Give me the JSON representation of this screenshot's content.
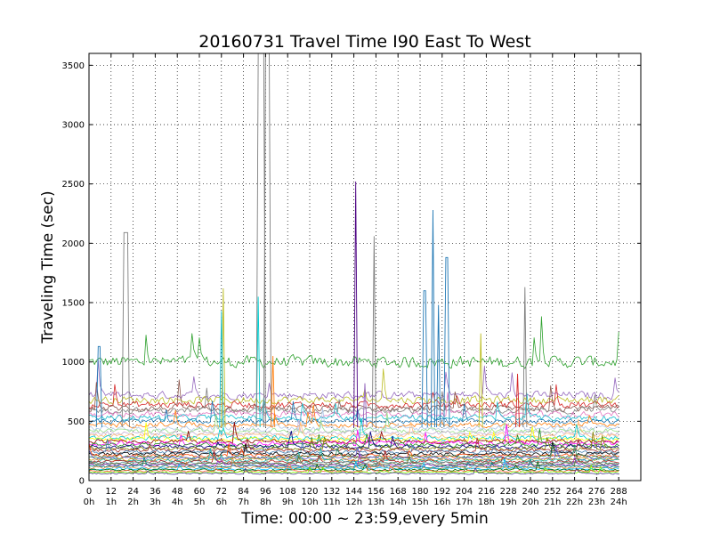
{
  "chart_data": {
    "type": "line",
    "title": "20160731 Travel Time I90 East To West",
    "xlabel": "Time: 00:00 ~ 23:59,every 5min",
    "ylabel": "Traveling Time (sec)",
    "xlim": [
      0,
      300
    ],
    "ylim": [
      0,
      3600
    ],
    "grid": true,
    "x_ticks": [
      {
        "value": 0,
        "label": "0",
        "hour": "0h"
      },
      {
        "value": 12,
        "label": "12",
        "hour": "1h"
      },
      {
        "value": 24,
        "label": "24",
        "hour": "2h"
      },
      {
        "value": 36,
        "label": "36",
        "hour": "3h"
      },
      {
        "value": 48,
        "label": "48",
        "hour": "4h"
      },
      {
        "value": 60,
        "label": "60",
        "hour": "5h"
      },
      {
        "value": 72,
        "label": "72",
        "hour": "6h"
      },
      {
        "value": 84,
        "label": "84",
        "hour": "7h"
      },
      {
        "value": 96,
        "label": "96",
        "hour": "8h"
      },
      {
        "value": 108,
        "label": "108",
        "hour": "9h"
      },
      {
        "value": 120,
        "label": "120",
        "hour": "10h"
      },
      {
        "value": 132,
        "label": "132",
        "hour": "11h"
      },
      {
        "value": 144,
        "label": "144",
        "hour": "12h"
      },
      {
        "value": 156,
        "label": "156",
        "hour": "13h"
      },
      {
        "value": 168,
        "label": "168",
        "hour": "14h"
      },
      {
        "value": 180,
        "label": "180",
        "hour": "15h"
      },
      {
        "value": 192,
        "label": "192",
        "hour": "16h"
      },
      {
        "value": 204,
        "label": "204",
        "hour": "17h"
      },
      {
        "value": 216,
        "label": "216",
        "hour": "18h"
      },
      {
        "value": 228,
        "label": "228",
        "hour": "19h"
      },
      {
        "value": 240,
        "label": "240",
        "hour": "20h"
      },
      {
        "value": 252,
        "label": "252",
        "hour": "21h"
      },
      {
        "value": 264,
        "label": "264",
        "hour": "22h"
      },
      {
        "value": 276,
        "label": "276",
        "hour": "23h"
      },
      {
        "value": 288,
        "label": "288",
        "hour": "24h"
      }
    ],
    "y_ticks": [
      0,
      500,
      1000,
      1500,
      2000,
      2500,
      3000,
      3500
    ],
    "series_count": 40,
    "series_points": 289,
    "series": [
      {
        "color": "#2ca02c",
        "base": 1000,
        "noise": 70
      },
      {
        "color": "#9467bd",
        "base": 720,
        "noise": 45
      },
      {
        "color": "#bcbd22",
        "base": 680,
        "noise": 45
      },
      {
        "color": "#d62728",
        "base": 640,
        "noise": 40
      },
      {
        "color": "#8c564b",
        "base": 610,
        "noise": 40
      },
      {
        "color": "#7f7f7f",
        "base": 590,
        "noise": 35
      },
      {
        "color": "#e377c2",
        "base": 560,
        "noise": 35
      },
      {
        "color": "#17becf",
        "base": 530,
        "noise": 35
      },
      {
        "color": "#1f77b4",
        "base": 500,
        "noise": 30
      },
      {
        "color": "#ff7f0e",
        "base": 470,
        "noise": 30
      },
      {
        "color": "#aec7e8",
        "base": 440,
        "noise": 30
      },
      {
        "color": "#98df8a",
        "base": 420,
        "noise": 30
      },
      {
        "color": "#c5b0d5",
        "base": 400,
        "noise": 28
      },
      {
        "color": "#ffbb78",
        "base": 380,
        "noise": 28
      },
      {
        "color": "#00ced1",
        "base": 360,
        "noise": 28
      },
      {
        "color": "#ffff00",
        "base": 345,
        "noise": 26
      },
      {
        "color": "#8b0000",
        "base": 330,
        "noise": 26
      },
      {
        "color": "#ff00ff",
        "base": 315,
        "noise": 26
      },
      {
        "color": "#228b22",
        "base": 300,
        "noise": 24
      },
      {
        "color": "#000080",
        "base": 285,
        "noise": 24
      },
      {
        "color": "#808000",
        "base": 270,
        "noise": 24
      },
      {
        "color": "#a52a2a",
        "base": 255,
        "noise": 22
      },
      {
        "color": "#4682b4",
        "base": 240,
        "noise": 22
      },
      {
        "color": "#000000",
        "base": 225,
        "noise": 22
      },
      {
        "color": "#ff4500",
        "base": 210,
        "noise": 20
      },
      {
        "color": "#2e8b57",
        "base": 200,
        "noise": 20
      },
      {
        "color": "#6a5acd",
        "base": 190,
        "noise": 20
      },
      {
        "color": "#daa520",
        "base": 180,
        "noise": 18
      },
      {
        "color": "#20b2aa",
        "base": 170,
        "noise": 18
      },
      {
        "color": "#b22222",
        "base": 160,
        "noise": 18
      },
      {
        "color": "#5f9ea0",
        "base": 150,
        "noise": 16
      },
      {
        "color": "#556b2f",
        "base": 140,
        "noise": 16
      },
      {
        "color": "#9932cc",
        "base": 130,
        "noise": 16
      },
      {
        "color": "#008080",
        "base": 120,
        "noise": 14
      },
      {
        "color": "#cd853f",
        "base": 110,
        "noise": 14
      },
      {
        "color": "#00bfff",
        "base": 100,
        "noise": 14
      },
      {
        "color": "#006400",
        "base": 90,
        "noise": 12
      },
      {
        "color": "#ff6347",
        "base": 80,
        "noise": 12
      },
      {
        "color": "#7cfc00",
        "base": 70,
        "noise": 10
      },
      {
        "color": "#483d8b",
        "base": 60,
        "noise": 10
      }
    ],
    "spikes": [
      {
        "color": "#7f7f7f",
        "x0": 19,
        "x1": 21,
        "y": 2090
      },
      {
        "color": "#1f77b4",
        "x0": 5,
        "x1": 6,
        "y": 1130
      },
      {
        "color": "#bcbd22",
        "x0": 73,
        "x1": 73,
        "y": 1620
      },
      {
        "color": "#17becf",
        "x0": 72,
        "x1": 72,
        "y": 1430
      },
      {
        "color": "#00ced1",
        "x0": 92,
        "x1": 92,
        "y": 1550
      },
      {
        "color": "#7f7f7f",
        "x0": 92,
        "x1": 95,
        "y": 3600
      },
      {
        "color": "#7f7f7f",
        "x0": 96,
        "x1": 98,
        "y": 3600
      },
      {
        "color": "#ff7f0e",
        "x0": 100,
        "x1": 100,
        "y": 1050
      },
      {
        "color": "#4b0082",
        "x0": 145,
        "x1": 145,
        "y": 2520
      },
      {
        "color": "#7f7f7f",
        "x0": 155,
        "x1": 155,
        "y": 2060
      },
      {
        "color": "#1f77b4",
        "x0": 182,
        "x1": 183,
        "y": 1600
      },
      {
        "color": "#1f77b4",
        "x0": 187,
        "x1": 187,
        "y": 2280
      },
      {
        "color": "#1f77b4",
        "x0": 190,
        "x1": 190,
        "y": 1480
      },
      {
        "color": "#1f77b4",
        "x0": 194,
        "x1": 195,
        "y": 1880
      },
      {
        "color": "#bcbd22",
        "x0": 213,
        "x1": 213,
        "y": 1240
      },
      {
        "color": "#7f7f7f",
        "x0": 237,
        "x1": 237,
        "y": 1630
      },
      {
        "color": "#9467bd",
        "x0": 150,
        "x1": 150,
        "y": 820
      },
      {
        "color": "#d62728",
        "x0": 233,
        "x1": 233,
        "y": 900
      }
    ]
  }
}
